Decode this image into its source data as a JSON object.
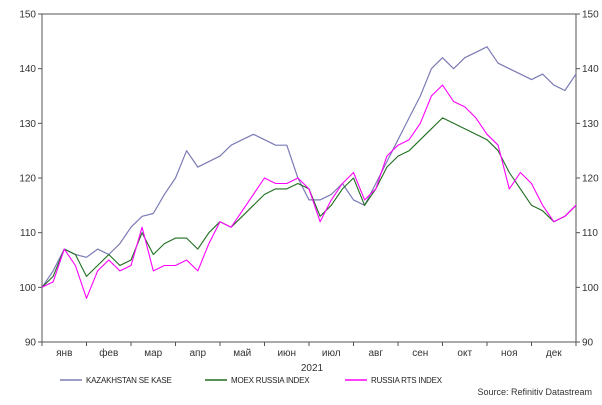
{
  "chart_data": {
    "type": "line",
    "title": "",
    "xlabel": "2021",
    "ylabel": "",
    "ylim": [
      90,
      150
    ],
    "yticks": [
      90,
      100,
      110,
      120,
      130,
      140,
      150
    ],
    "ytick_labels_left": [
      "90",
      "100",
      "110",
      "120",
      "130",
      "140",
      "150"
    ],
    "ytick_labels_right": [
      "90",
      "100",
      "110",
      "120",
      "130",
      "140",
      "150"
    ],
    "months": [
      "янв",
      "фев",
      "мар",
      "апр",
      "май",
      "июн",
      "июл",
      "авг",
      "сен",
      "окт",
      "ноя",
      "дек"
    ],
    "grid": false,
    "legend_position": "bottom",
    "source": "Source: Refinitiv Datastream",
    "x": [
      0,
      0.25,
      0.5,
      0.75,
      1.0,
      1.25,
      1.5,
      1.75,
      2.0,
      2.25,
      2.5,
      2.75,
      3.0,
      3.25,
      3.5,
      3.75,
      4.0,
      4.25,
      4.5,
      4.75,
      5.0,
      5.25,
      5.5,
      5.75,
      6.0,
      6.25,
      6.5,
      6.75,
      7.0,
      7.25,
      7.5,
      7.75,
      8.0,
      8.25,
      8.5,
      8.75,
      9.0,
      9.25,
      9.5,
      9.75,
      10.0,
      10.25,
      10.5,
      10.75,
      11.0,
      11.25,
      11.5,
      11.75,
      12.0
    ],
    "series": [
      {
        "name": "KAZAKHSTAN SE KASE",
        "color": "#7b7bb5",
        "values": [
          100,
          103,
          107,
          106,
          105.5,
          107,
          106,
          108,
          111,
          113,
          113.5,
          117,
          120,
          125,
          122,
          123,
          124,
          126,
          127,
          128,
          127,
          126,
          126,
          120,
          116,
          116,
          117,
          119,
          116,
          115,
          119,
          123,
          127,
          131,
          135,
          140,
          142,
          140,
          142,
          143,
          144,
          141,
          140,
          139,
          138,
          139,
          137,
          136,
          139
        ]
      },
      {
        "name": "MOEX RUSSIA INDEX",
        "color": "#1f6e1f",
        "values": [
          100,
          102,
          107,
          106,
          102,
          104,
          106,
          104,
          105,
          110,
          106,
          108,
          109,
          109,
          107,
          110,
          112,
          111,
          113,
          115,
          117,
          118,
          118,
          119,
          118,
          113,
          115,
          118,
          120,
          115,
          118,
          122,
          124,
          125,
          127,
          129,
          131,
          130,
          129,
          128,
          127,
          125,
          121,
          118,
          115,
          114,
          112,
          113,
          115
        ]
      },
      {
        "name": "RUSSIA RTS INDEX",
        "color": "#ff00ff",
        "values": [
          100,
          101,
          107,
          104,
          98,
          103,
          105,
          103,
          104,
          111,
          103,
          104,
          104,
          105,
          103,
          108,
          112,
          111,
          114,
          117,
          120,
          119,
          119,
          120,
          118,
          112,
          116,
          119,
          121,
          116,
          118,
          124,
          126,
          127,
          130,
          135,
          137,
          134,
          133,
          131,
          128,
          126,
          118,
          121,
          119,
          115,
          112,
          113,
          115
        ]
      }
    ]
  }
}
